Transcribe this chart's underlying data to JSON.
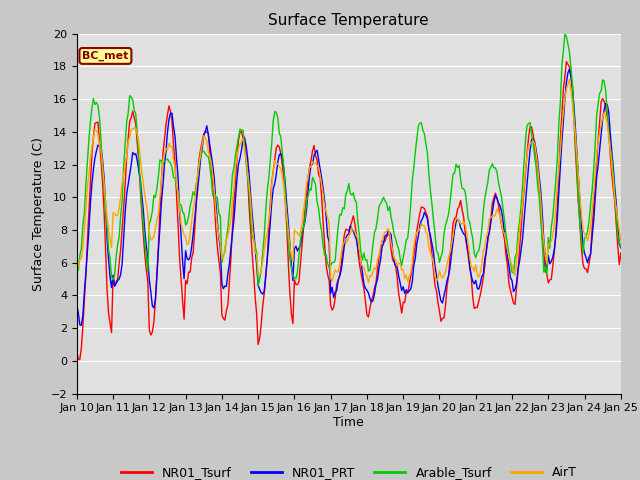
{
  "title": "Surface Temperature",
  "xlabel": "Time",
  "ylabel": "Surface Temperature (C)",
  "ylim": [
    -2,
    20
  ],
  "yticks": [
    -2,
    0,
    2,
    4,
    6,
    8,
    10,
    12,
    14,
    16,
    18,
    20
  ],
  "annotation_text": "BC_met",
  "annotation_color": "#8B0000",
  "annotation_bg": "#FFFF99",
  "fig_bg_color": "#C8C8C8",
  "plot_bg": "#E0E0E0",
  "colors": {
    "NR01_Tsurf": "#FF0000",
    "NR01_PRT": "#0000FF",
    "Arable_Tsurf": "#00CC00",
    "AirT": "#FFA500"
  },
  "x_start": 0,
  "x_end": 360,
  "xtick_labels": [
    "Jan 10",
    "Jan 11",
    "Jan 12",
    "Jan 13",
    "Jan 14",
    "Jan 15",
    "Jan 16",
    "Jan 17",
    "Jan 18",
    "Jan 19",
    "Jan 20",
    "Jan 21",
    "Jan 22",
    "Jan 23",
    "Jan 24",
    "Jan 25"
  ],
  "xtick_positions": [
    0,
    24,
    48,
    72,
    96,
    120,
    144,
    168,
    192,
    216,
    240,
    264,
    288,
    312,
    336,
    360
  ]
}
